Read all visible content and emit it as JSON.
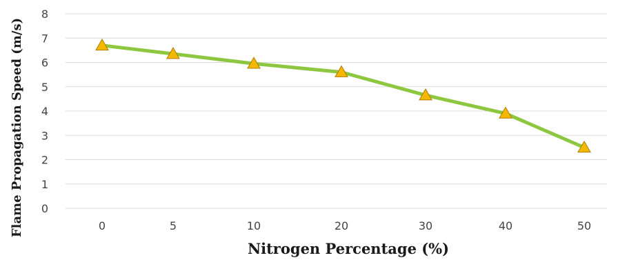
{
  "chart_data": {
    "type": "line",
    "title": "",
    "xlabel": "Nitrogen Percentage (%)",
    "ylabel": "Flame Propagation Speed (m/s)",
    "categories": [
      "0",
      "5",
      "10",
      "20",
      "30",
      "40",
      "50"
    ],
    "ylim": [
      0,
      8
    ],
    "yticks": [
      0,
      1,
      2,
      3,
      4,
      5,
      6,
      7,
      8
    ],
    "grid": true,
    "legend": "none",
    "series": [
      {
        "values": [
          6.7,
          6.35,
          5.95,
          5.6,
          4.65,
          3.9,
          2.5
        ],
        "line_color": "#8dc63f",
        "marker": "triangle",
        "marker_color": "#f5b800"
      }
    ]
  }
}
